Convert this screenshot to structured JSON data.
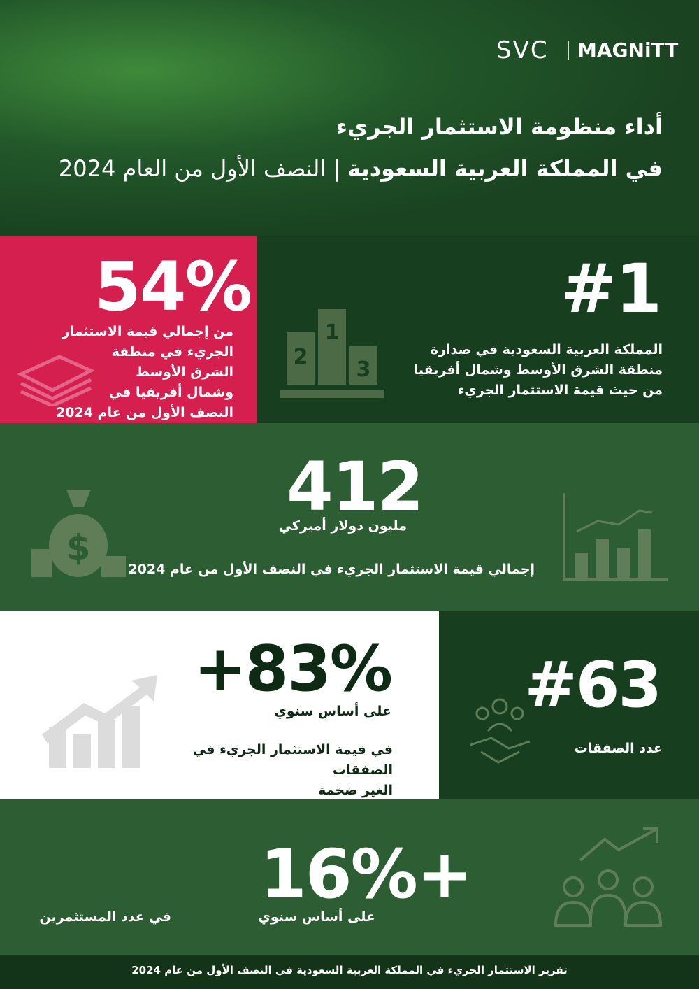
{
  "header": {
    "logos": [
      "SVC",
      "MAGNiTT"
    ],
    "title": [
      "أداء منظومة الاستثمار الجريء",
      "في المملكة العربية السعودية",
      "| النصف الأول من العام 2024"
    ]
  },
  "sections": [
    {
      "stat": "54%",
      "lines": [
        "من إجمالي قيمة الاستثمار",
        "الجريء في منطقة",
        "الشرق الأوسط",
        "وشمال أفريقيا في",
        "النصف الأول من عام 2024"
      ]
    },
    {
      "stat": "#1",
      "lines": [
        "المملكة العربية السعودية في صدارة",
        "منطقة الشرق الأوسط وشمال أفريقيا",
        "من حيث قيمة الاستثمار الجريء"
      ]
    },
    {
      "stat": "412",
      "unit": "مليون دولار أميركي",
      "lines": [
        "إجمالي قيمة الاستثمار الجريء في النصف الأول من عام 2024"
      ]
    },
    {
      "stat": "+83%",
      "unit": "على أساس سنوي",
      "lines": [
        "في قيمة الاستثمار الجريء في الصفقات",
        "الغير ضخمة"
      ]
    },
    {
      "stat": "#63",
      "lines": [
        "عدد الصفقات"
      ]
    },
    {
      "stat": "16%+",
      "unit": "على أساس سنوي",
      "lines": [
        "في عدد المستثمرين"
      ]
    }
  ],
  "footer": "تقرير الاستثمار الجريء في المملكة العربية السعودية في النصف الأول من عام 2024"
}
